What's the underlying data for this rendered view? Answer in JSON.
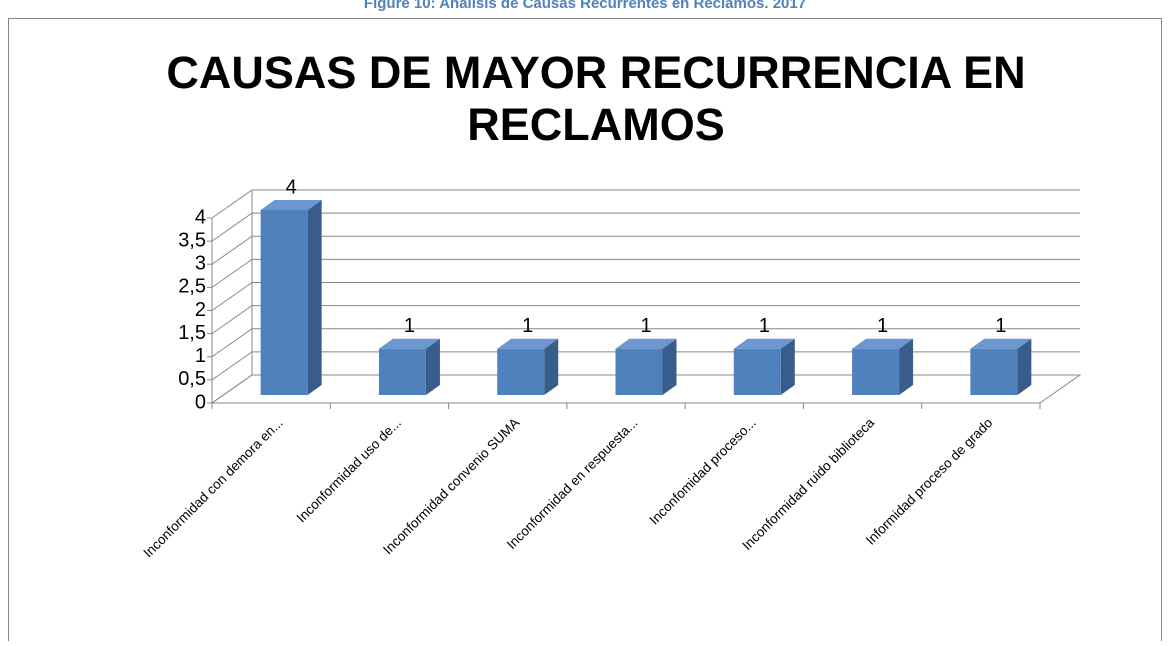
{
  "caption": "Figure 10: Análisis de Causas Recurrentes en Reclamos. 2017",
  "chart_data": {
    "type": "bar3d",
    "title": [
      "CAUSAS DE MAYOR RECURRENCIA EN",
      "RECLAMOS"
    ],
    "categories": [
      "Inconformidad con demora en...",
      "Inconformidad uso de...",
      "Inconformidad convenio SUMA",
      "Inconformidad  en respuesta...",
      "Inconfomidad proceso...",
      "Inconformidad ruido biblioteca",
      "Informidad proceso de grado"
    ],
    "values": [
      4,
      1,
      1,
      1,
      1,
      1,
      1
    ],
    "color": "#4f81bd",
    "ylim": [
      0,
      4
    ],
    "yticks": [
      0,
      {
        "value": 0.5,
        "label": "0,5"
      },
      1,
      {
        "value": 1.5,
        "label": "1,5"
      },
      2,
      {
        "value": 2.5,
        "label": "2,5"
      },
      3,
      {
        "value": 3.5,
        "label": "3,5"
      },
      4
    ],
    "grid": true
  }
}
